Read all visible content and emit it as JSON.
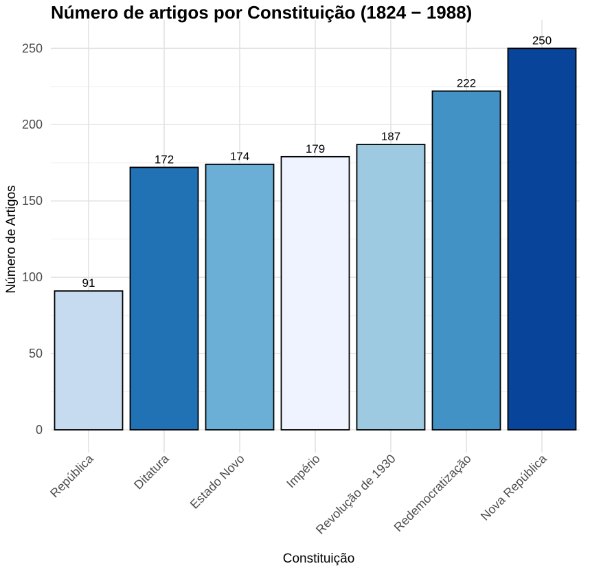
{
  "chart_data": {
    "type": "bar",
    "title": "Número de artigos por Constituição (1824 − 1988)",
    "xlabel": "Constituição",
    "ylabel": "Número de Artigos",
    "categories": [
      "República",
      "Ditatura",
      "Estado Novo",
      "Império",
      "Revolução de 1930",
      "Redemocratização",
      "Nova República"
    ],
    "values": [
      91,
      172,
      174,
      179,
      187,
      222,
      250
    ],
    "value_labels": [
      "91",
      "172",
      "174",
      "179",
      "187",
      "222",
      "250"
    ],
    "colors": [
      "#c6dbef",
      "#2171b5",
      "#6baed6",
      "#eff3ff",
      "#9ecae1",
      "#4292c6",
      "#08459a"
    ],
    "yticks": [
      0,
      50,
      100,
      150,
      200,
      250
    ],
    "ytick_labels": [
      "0",
      "50",
      "100",
      "150",
      "200",
      "250"
    ],
    "ylim": [
      0,
      265
    ],
    "grid": true,
    "legend": "none"
  }
}
